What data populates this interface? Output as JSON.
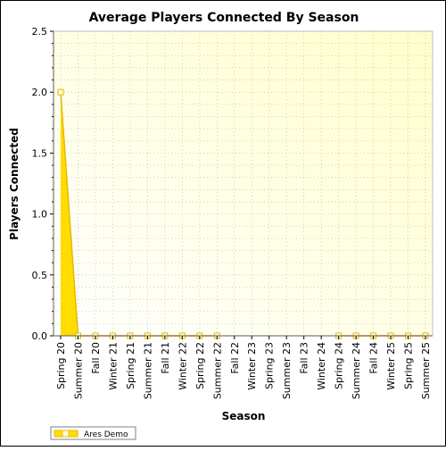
{
  "chart_data": {
    "type": "area",
    "title": "Average Players Connected By Season",
    "xlabel": "Season",
    "ylabel": "Players Connected",
    "categories": [
      "Spring 20",
      "Summer 20",
      "Fall 20",
      "Winter 21",
      "Spring 21",
      "Summer 21",
      "Fall 21",
      "Winter 22",
      "Spring 22",
      "Summer 22",
      "Fall 22",
      "Winter 23",
      "Spring 23",
      "Summer 23",
      "Fall 23",
      "Winter 24",
      "Spring 24",
      "Summer 24",
      "Fall 24",
      "Winter 25",
      "Spring 25",
      "Summer 25"
    ],
    "series": [
      {
        "name": "Ares Demo",
        "values": [
          2.0,
          0,
          0,
          0,
          0,
          0,
          0,
          0,
          0,
          0,
          null,
          null,
          null,
          null,
          null,
          null,
          0,
          0,
          0,
          0,
          0,
          0
        ]
      }
    ],
    "ylim": [
      0,
      2.5
    ],
    "yticks": [
      "0.0",
      "0.5",
      "1.0",
      "1.5",
      "2.0",
      "2.5"
    ],
    "grid": true,
    "legend_position": "bottom-left",
    "colors": {
      "fill": "#ffdd00",
      "line": "#e8b800",
      "marker_fill": "#ffffe0",
      "plot_bg": "#fefed6",
      "grid": "#c8c8a0"
    }
  }
}
